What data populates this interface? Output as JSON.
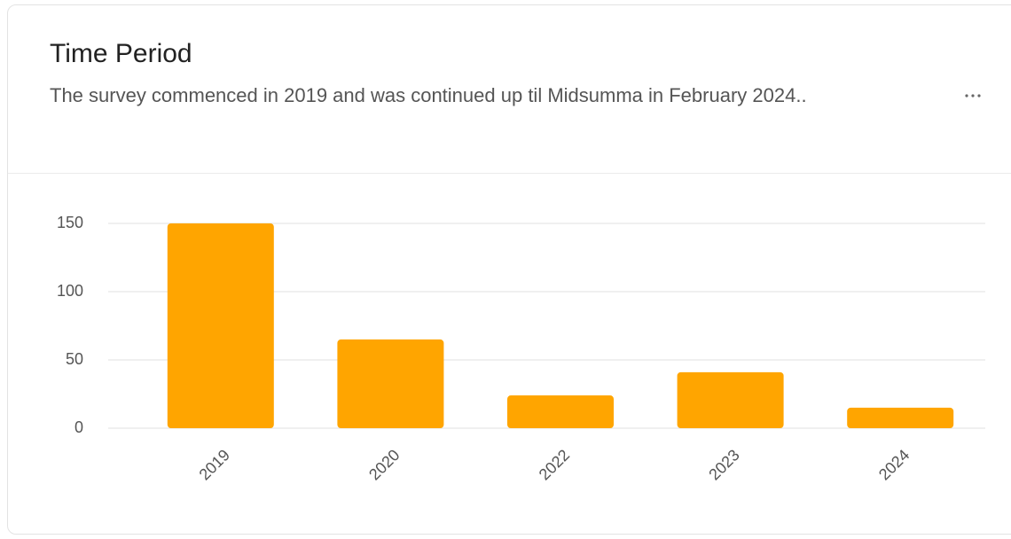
{
  "header": {
    "title": "Time Period",
    "subtitle": "The survey commenced in 2019 and was continued up til Midsumma in February 2024.."
  },
  "chart_data": {
    "type": "bar",
    "categories": [
      "2019",
      "2020",
      "2022",
      "2023",
      "2024"
    ],
    "values": [
      150,
      65,
      24,
      41,
      15
    ],
    "color": "#ffa500",
    "ylim": [
      0,
      150
    ],
    "yticks": [
      0,
      50,
      100,
      150
    ],
    "grid": true
  }
}
